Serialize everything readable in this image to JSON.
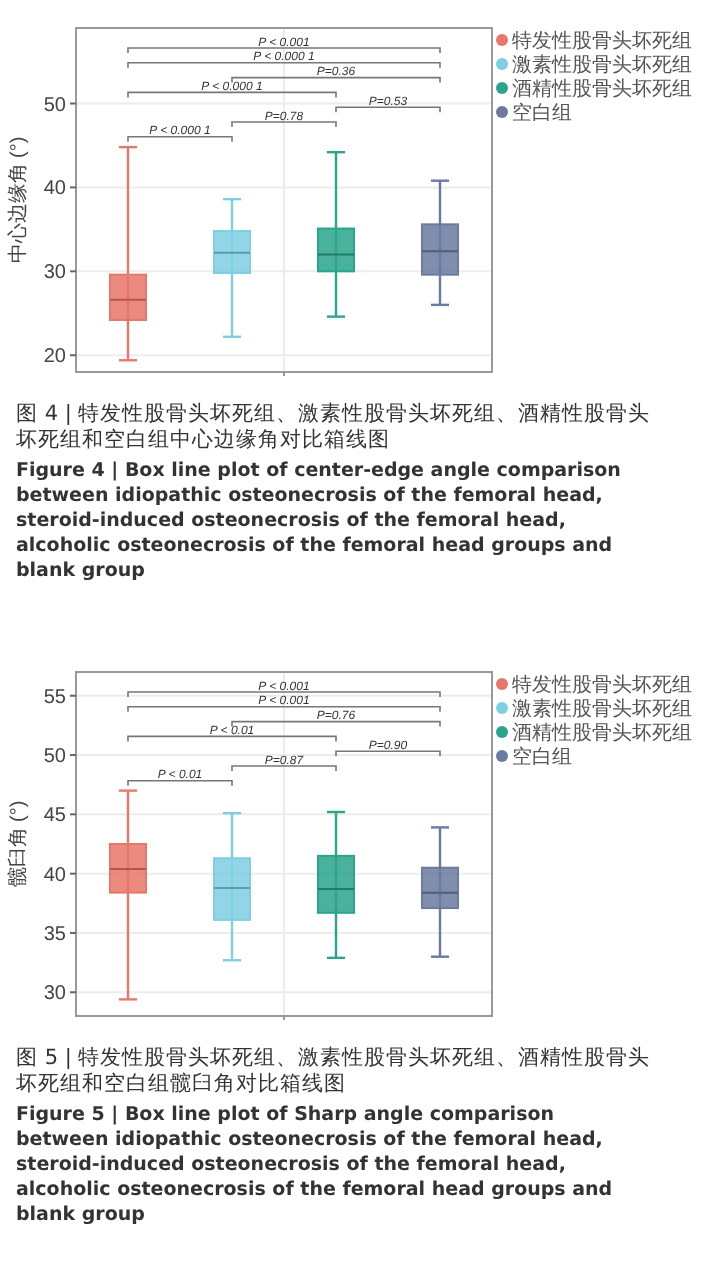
{
  "chart_data": [
    {
      "type": "box",
      "title": "图 4 | 特发性股骨头坏死组、激素性股骨头坏死组、酒精性股骨头坏死组和空白组中心边缘角对比箱线图",
      "subtitle": "Figure 4 | Box line plot of center-edge angle comparison between idiopathic osteonecrosis of the femoral head, steroid-induced osteonecrosis of the femoral head, alcoholic osteonecrosis of the femoral head groups and blank group",
      "ylabel": "中心边缘角 (°)",
      "categories": [
        null,
        null,
        null,
        null
      ],
      "ylim": [
        18,
        59
      ],
      "yticks": [
        20,
        30,
        40,
        50
      ],
      "grid": true,
      "legend": "right",
      "tick_labels": "y",
      "annotations": [
        "P < 0.001",
        "P < 0.000 1",
        "P=0.36",
        "P < 0.000 1",
        "P=0.53",
        "P=0.78",
        "P < 0.000 1"
      ],
      "series": [
        {
          "name": "特发性股骨头坏死组",
          "color": "#e8776a",
          "boxes": [
            {
              "low": 19.4,
              "q1": 24.2,
              "median": 26.6,
              "q3": 29.6,
              "high": 44.8
            },
            null,
            null,
            null
          ]
        },
        {
          "name": "激素性股骨头坏死组",
          "color": "#7ecfe2",
          "boxes": [
            null,
            {
              "low": 22.2,
              "q1": 29.8,
              "median": 32.2,
              "q3": 34.8,
              "high": 38.6
            },
            null,
            null
          ]
        },
        {
          "name": "酒精性股骨头坏死组",
          "color": "#2aa58b",
          "boxes": [
            null,
            null,
            {
              "low": 24.6,
              "q1": 30,
              "median": 32,
              "q3": 35.1,
              "high": 44.2
            },
            null
          ]
        },
        {
          "name": "空白组",
          "color": "#6a7aa0",
          "boxes": [
            null,
            null,
            null,
            {
              "low": 26,
              "q1": 29.6,
              "median": 32.4,
              "q3": 35.6,
              "high": 40.8
            }
          ]
        }
      ]
    },
    {
      "type": "box",
      "title": "图 5 | 特发性股骨头坏死组、激素性股骨头坏死组、酒精性股骨头坏死组和空白组髋臼角对比箱线图",
      "subtitle": "Figure 5 | Box line plot of Sharp angle comparison between idiopathic osteonecrosis of the femoral head, steroid-induced osteonecrosis of the femoral head, alcoholic osteonecrosis of the femoral head groups and blank group",
      "ylabel": "髋臼角 (°)",
      "categories": [
        null,
        null,
        null,
        null
      ],
      "ylim": [
        28,
        57
      ],
      "yticks": [
        30,
        35,
        40,
        45,
        50,
        55
      ],
      "grid": true,
      "legend": "right",
      "tick_labels": "y",
      "annotations": [
        "P < 0.001",
        "P < 0.001",
        "P=0.76",
        "P < 0.01",
        "P=0.90",
        "P=0.87",
        "P < 0.01"
      ],
      "series": [
        {
          "name": "特发性股骨头坏死组",
          "color": "#e8776a",
          "boxes": [
            {
              "low": 29.4,
              "q1": 38.4,
              "median": 40.4,
              "q3": 42.5,
              "high": 47
            },
            null,
            null,
            null
          ]
        },
        {
          "name": "激素性股骨头坏死组",
          "color": "#7ecfe2",
          "boxes": [
            null,
            {
              "low": 32.7,
              "q1": 36.1,
              "median": 38.8,
              "q3": 41.3,
              "high": 45.1
            },
            null,
            null
          ]
        },
        {
          "name": "酒精性股骨头坏死组",
          "color": "#2aa58b",
          "boxes": [
            null,
            null,
            {
              "low": 32.9,
              "q1": 36.7,
              "median": 38.7,
              "q3": 41.5,
              "high": 45.2
            },
            null
          ]
        },
        {
          "name": "空白组",
          "color": "#6a7aa0",
          "boxes": [
            null,
            null,
            null,
            {
              "low": 33,
              "q1": 37.1,
              "median": 38.4,
              "q3": 40.5,
              "high": 43.9
            }
          ]
        }
      ]
    }
  ]
}
